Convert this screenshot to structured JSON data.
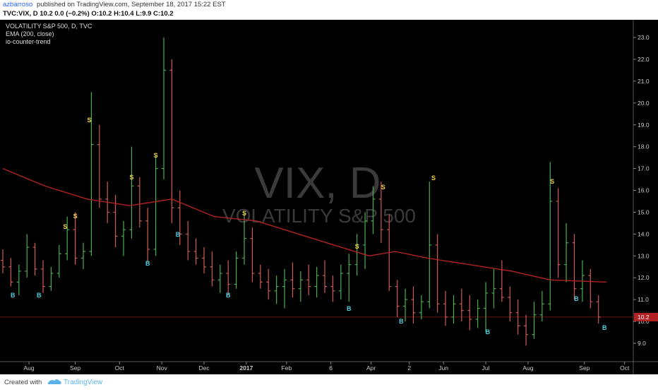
{
  "header": {
    "author": "azbarroso",
    "byline": "published on TradingView.com, September 18, 2017 15:22 EST",
    "quote": "TVC:VIX, D  10.2 0.0 (−0.2%) O:10.2 H:10.4 L:9.9 C:10.2"
  },
  "chart_data": {
    "type": "ohlc",
    "legend": [
      "VOLATILITY S&P 500, D, TVC",
      "EMA (200, close)",
      "io-counter-trend"
    ],
    "watermark": [
      "VIX, D",
      "VOLATILITY S&P 500"
    ],
    "up_color": "#4caf50",
    "down_color": "#d05a55",
    "ema_color": "#b22222",
    "buy_color": "#4dd0e1",
    "sell_color": "#f5d547",
    "x": [
      0,
      4,
      8,
      12,
      16,
      20,
      24,
      28,
      32,
      36,
      40,
      44,
      48,
      52,
      56,
      60,
      64,
      68,
      72,
      76,
      80,
      84,
      88,
      92,
      96,
      100,
      104,
      108,
      112,
      116,
      120,
      124,
      128,
      132,
      136,
      140,
      144,
      148,
      152,
      156,
      160,
      164,
      168,
      172,
      176,
      180,
      184,
      188,
      192,
      196,
      200,
      204,
      208,
      212,
      216,
      220,
      224,
      228,
      232,
      236,
      240,
      244,
      248,
      252,
      256,
      260,
      264,
      268,
      272,
      276,
      280,
      284,
      288,
      292,
      296
    ],
    "open": [
      12.8,
      12.5,
      11.8,
      12.3,
      13.4,
      12.4,
      11.6,
      12.2,
      13.1,
      14.2,
      12.9,
      13.2,
      18.1,
      15.6,
      15.0,
      13.9,
      14.2,
      16.2,
      14.6,
      13.3,
      17.0,
      21.5,
      15.2,
      14.0,
      13.2,
      12.9,
      12.5,
      11.9,
      12.2,
      11.7,
      12.9,
      13.8,
      12.2,
      11.8,
      11.4,
      11.6,
      11.9,
      11.5,
      11.9,
      11.6,
      12.1,
      11.6,
      11.4,
      12.2,
      12.6,
      13.5,
      14.6,
      15.6,
      14.2,
      11.6,
      10.7,
      11.0,
      10.4,
      10.9,
      13.5,
      10.8,
      10.2,
      10.8,
      10.5,
      10.1,
      10.6,
      11.3,
      11.5,
      11.1,
      10.4,
      9.8,
      9.4,
      10.3,
      10.8,
      15.5,
      12.6,
      13.6,
      11.5,
      12.1,
      10.9
    ],
    "high": [
      13.3,
      12.9,
      12.6,
      14.0,
      13.6,
      12.8,
      12.5,
      13.5,
      14.8,
      15.0,
      13.6,
      20.5,
      19.0,
      16.4,
      15.8,
      14.6,
      18.0,
      16.6,
      15.2,
      17.6,
      23.0,
      22.0,
      16.0,
      14.6,
      13.8,
      13.4,
      13.2,
      12.6,
      12.8,
      13.2,
      15.0,
      14.3,
      12.6,
      12.4,
      12.1,
      12.4,
      12.7,
      12.3,
      12.6,
      12.5,
      12.8,
      12.1,
      12.6,
      13.1,
      14.0,
      15.0,
      16.2,
      16.4,
      14.9,
      11.9,
      11.5,
      11.6,
      11.2,
      16.4,
      14.0,
      11.4,
      11.2,
      11.5,
      11.2,
      11.0,
      11.8,
      12.4,
      12.8,
      11.6,
      11.0,
      10.3,
      10.9,
      11.4,
      17.3,
      16.1,
      14.5,
      14.0,
      12.8,
      12.4,
      11.2
    ],
    "low": [
      12.2,
      11.6,
      11.2,
      12.0,
      12.1,
      11.3,
      11.4,
      12.0,
      12.8,
      12.6,
      12.4,
      13.0,
      15.2,
      14.5,
      13.4,
      13.0,
      13.8,
      14.3,
      12.7,
      13.0,
      16.5,
      14.5,
      13.5,
      12.8,
      12.6,
      12.2,
      11.6,
      11.3,
      11.2,
      11.5,
      12.6,
      11.8,
      11.5,
      11.0,
      10.8,
      10.6,
      11.1,
      10.9,
      11.2,
      11.1,
      11.3,
      10.9,
      11.0,
      10.9,
      12.1,
      12.4,
      14.0,
      13.6,
      11.4,
      10.2,
      10.0,
      9.9,
      10.1,
      10.6,
      10.4,
      9.8,
      9.9,
      10.0,
      9.6,
      9.7,
      9.5,
      10.6,
      10.9,
      10.0,
      9.4,
      8.9,
      9.2,
      10.0,
      10.5,
      12.0,
      11.8,
      11.0,
      10.9,
      10.6,
      9.9
    ],
    "close": [
      12.5,
      11.8,
      12.3,
      13.4,
      12.4,
      11.6,
      12.2,
      13.1,
      14.2,
      12.9,
      13.2,
      18.1,
      15.6,
      15.0,
      13.9,
      14.2,
      16.2,
      14.6,
      13.3,
      17.0,
      21.5,
      15.2,
      14.0,
      13.2,
      12.9,
      12.5,
      11.9,
      12.2,
      11.7,
      12.9,
      13.8,
      12.2,
      11.8,
      11.4,
      11.6,
      11.9,
      11.5,
      11.9,
      11.6,
      12.1,
      11.6,
      11.4,
      12.2,
      12.6,
      13.5,
      14.6,
      15.6,
      14.2,
      11.6,
      10.7,
      11.0,
      10.4,
      10.9,
      13.5,
      10.8,
      10.2,
      10.8,
      10.5,
      10.1,
      10.6,
      11.3,
      11.5,
      11.1,
      10.4,
      9.8,
      9.4,
      10.3,
      10.8,
      15.5,
      12.6,
      13.6,
      11.5,
      12.1,
      10.9,
      10.2
    ],
    "ema": {
      "x": [
        0,
        21,
        42,
        63,
        84,
        105,
        126,
        147,
        168,
        182,
        195,
        211,
        232,
        253,
        272,
        300
      ],
      "values": [
        17.0,
        16.2,
        15.6,
        15.3,
        15.6,
        14.8,
        14.6,
        14.0,
        13.4,
        13.0,
        13.2,
        12.9,
        12.6,
        12.3,
        11.9,
        11.8
      ]
    },
    "signals": [
      {
        "label": "B",
        "x": 5,
        "value": 11.2
      },
      {
        "label": "B",
        "x": 18,
        "value": 11.2
      },
      {
        "label": "S",
        "x": 31,
        "value": 14.33
      },
      {
        "label": "S",
        "x": 36,
        "value": 14.82
      },
      {
        "label": "S",
        "x": 43,
        "value": 19.22
      },
      {
        "label": "S",
        "x": 64,
        "value": 16.6
      },
      {
        "label": "B",
        "x": 72,
        "value": 12.65
      },
      {
        "label": "S",
        "x": 76,
        "value": 17.6
      },
      {
        "label": "B",
        "x": 87,
        "value": 13.98
      },
      {
        "label": "B",
        "x": 112,
        "value": 11.2
      },
      {
        "label": "S",
        "x": 120,
        "value": 14.95
      },
      {
        "label": "B",
        "x": 172,
        "value": 10.59
      },
      {
        "label": "S",
        "x": 176,
        "value": 13.43
      },
      {
        "label": "S",
        "x": 189,
        "value": 16.15
      },
      {
        "label": "B",
        "x": 198,
        "value": 10.0
      },
      {
        "label": "S",
        "x": 214,
        "value": 16.57
      },
      {
        "label": "B",
        "x": 241,
        "value": 9.52
      },
      {
        "label": "S",
        "x": 273,
        "value": 16.4
      },
      {
        "label": "B",
        "x": 285,
        "value": 11.04
      },
      {
        "label": "B",
        "x": 299,
        "value": 9.71
      }
    ],
    "last_price": 10.2,
    "xlim": [
      -1.4,
      313.3
    ],
    "ylim": [
      8.16,
      23.81
    ],
    "xticks": [
      {
        "value": 13,
        "label": "Aug"
      },
      {
        "value": 36,
        "label": "Sep"
      },
      {
        "value": 58,
        "label": "Oct"
      },
      {
        "value": 79,
        "label": "Nov"
      },
      {
        "value": 100,
        "label": "Dec"
      },
      {
        "value": 121,
        "label": "2017"
      },
      {
        "value": 141,
        "label": "Feb"
      },
      {
        "value": 163,
        "label": "6"
      },
      {
        "value": 183,
        "label": "Apr"
      },
      {
        "value": 202,
        "label": "2"
      },
      {
        "value": 219,
        "label": "Jun"
      },
      {
        "value": 240,
        "label": "Jul"
      },
      {
        "value": 261,
        "label": "Aug"
      },
      {
        "value": 289,
        "label": "Sep"
      },
      {
        "value": 309,
        "label": "Oct"
      }
    ],
    "yticks": [
      {
        "value": 9,
        "label": "9.0"
      },
      {
        "value": 10,
        "label": "10.0"
      },
      {
        "value": 11,
        "label": "11.0"
      },
      {
        "value": 12,
        "label": "12.0"
      },
      {
        "value": 13,
        "label": "13.0"
      },
      {
        "value": 14,
        "label": "14.0"
      },
      {
        "value": 15,
        "label": "15.0"
      },
      {
        "value": 16,
        "label": "16.0"
      },
      {
        "value": 17,
        "label": "17.0"
      },
      {
        "value": 18,
        "label": "18.0"
      },
      {
        "value": 19,
        "label": "19.0"
      },
      {
        "value": 20,
        "label": "20.0"
      },
      {
        "value": 21,
        "label": "21.0"
      },
      {
        "value": 22,
        "label": "22.0"
      },
      {
        "value": 23,
        "label": "23.0"
      }
    ]
  },
  "footer": {
    "created": "Created with",
    "brand": "TradingView"
  }
}
